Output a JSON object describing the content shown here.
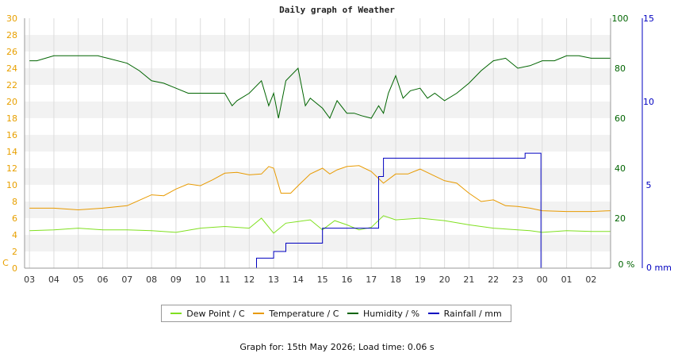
{
  "chart_data": {
    "type": "line",
    "title": "Daily graph of Weather",
    "x_ticks": [
      "03",
      "04",
      "05",
      "06",
      "07",
      "08",
      "09",
      "10",
      "11",
      "12",
      "13",
      "14",
      "15",
      "16",
      "17",
      "18",
      "19",
      "20",
      "21",
      "22",
      "23",
      "00",
      "01",
      "02"
    ],
    "left_axis": {
      "unit": "C",
      "range": [
        0,
        30
      ],
      "ticks": [
        0,
        2,
        4,
        6,
        8,
        10,
        12,
        14,
        16,
        18,
        20,
        22,
        24,
        26,
        28,
        30
      ],
      "color": "#e8a000"
    },
    "humidity_axis": {
      "unit": "%",
      "range": [
        0,
        100
      ],
      "ticks": [
        0,
        20,
        40,
        60,
        80,
        100
      ],
      "color": "#006400"
    },
    "rain_axis": {
      "unit": "mm",
      "range": [
        0,
        15
      ],
      "ticks": [
        0,
        5,
        10,
        15
      ],
      "color": "#0000c0"
    },
    "grid": true,
    "legend_position": "bottom",
    "series": [
      {
        "name": "Dew Point / C",
        "axis": "left",
        "color": "#80e020",
        "x": [
          3,
          4,
          5,
          6,
          7,
          8,
          9,
          10,
          11,
          12,
          12.5,
          13,
          13.5,
          14,
          14.5,
          15,
          15.5,
          16,
          16.5,
          17,
          17.5,
          18,
          19,
          20,
          21,
          22,
          23,
          23.5,
          24,
          25,
          26,
          26.8
        ],
        "y": [
          4.5,
          4.6,
          4.8,
          4.6,
          4.6,
          4.5,
          4.3,
          4.8,
          5.0,
          4.8,
          6.0,
          4.2,
          5.4,
          5.6,
          5.8,
          4.6,
          5.7,
          5.2,
          4.6,
          4.9,
          6.3,
          5.8,
          6.0,
          5.7,
          5.2,
          4.8,
          4.6,
          4.5,
          4.3,
          4.5,
          4.4,
          4.4
        ]
      },
      {
        "name": "Temperature / C",
        "axis": "left",
        "color": "#e89a00",
        "x": [
          3,
          4,
          5,
          6,
          7,
          8,
          8.5,
          9,
          9.5,
          10,
          10.5,
          11,
          11.5,
          12,
          12.5,
          12.8,
          13,
          13.3,
          13.7,
          14,
          14.5,
          15,
          15.3,
          15.6,
          16,
          16.5,
          17,
          17.5,
          18,
          18.5,
          19,
          19.5,
          20,
          20.5,
          21,
          21.5,
          22,
          22.5,
          23,
          23.5,
          24,
          25,
          26,
          26.8
        ],
        "y": [
          7.2,
          7.2,
          7.0,
          7.2,
          7.5,
          8.8,
          8.7,
          9.5,
          10.1,
          9.9,
          10.6,
          11.4,
          11.5,
          11.2,
          11.3,
          12.2,
          12.0,
          9.0,
          9.0,
          9.9,
          11.3,
          12.0,
          11.3,
          11.8,
          12.2,
          12.3,
          11.6,
          10.2,
          11.3,
          11.3,
          11.9,
          11.2,
          10.5,
          10.2,
          9.0,
          8.0,
          8.2,
          7.5,
          7.4,
          7.2,
          6.9,
          6.8,
          6.8,
          6.9
        ]
      },
      {
        "name": "Humidity / %",
        "axis": "humidity",
        "color": "#006400",
        "x": [
          3,
          3.3,
          4,
          5,
          5.8,
          6.2,
          7,
          7.5,
          8,
          8.5,
          9,
          9.5,
          10,
          10.5,
          11,
          11.3,
          11.5,
          12,
          12.5,
          12.8,
          13,
          13.2,
          13.5,
          14,
          14.3,
          14.5,
          15,
          15.3,
          15.6,
          16,
          16.3,
          16.6,
          17,
          17.3,
          17.5,
          17.7,
          18,
          18.3,
          18.6,
          19,
          19.3,
          19.6,
          20,
          20.5,
          21,
          21.5,
          22,
          22.5,
          23,
          23.5,
          24,
          24.5,
          25,
          25.5,
          26,
          26.8
        ],
        "y": [
          83,
          83,
          85,
          85,
          85,
          84,
          82,
          79,
          75,
          74,
          72,
          70,
          70,
          70,
          70,
          65,
          67,
          70,
          75,
          65,
          70,
          60,
          75,
          80,
          65,
          68,
          64,
          60,
          67,
          62,
          62,
          61,
          60,
          65,
          62,
          70,
          77,
          68,
          71,
          72,
          68,
          70,
          67,
          70,
          74,
          79,
          83,
          84,
          80,
          81,
          83,
          83,
          85,
          85,
          84,
          84
        ]
      },
      {
        "name": "Rainfall / mm",
        "axis": "rain",
        "color": "#0000c0",
        "x": [
          3,
          12.3,
          12.3,
          13.0,
          13.0,
          13.5,
          13.5,
          15.0,
          15.0,
          17.3,
          17.3,
          17.5,
          17.5,
          23.3,
          23.3,
          23.95,
          23.95,
          26.8
        ],
        "y": [
          0,
          0,
          0.6,
          0.6,
          1.0,
          1.0,
          1.5,
          1.5,
          2.4,
          2.4,
          5.5,
          5.5,
          6.6,
          6.6,
          6.9,
          6.9,
          0,
          0
        ]
      }
    ]
  },
  "footer": "Graph for: 15th May 2026; Load time: 0.06 s"
}
